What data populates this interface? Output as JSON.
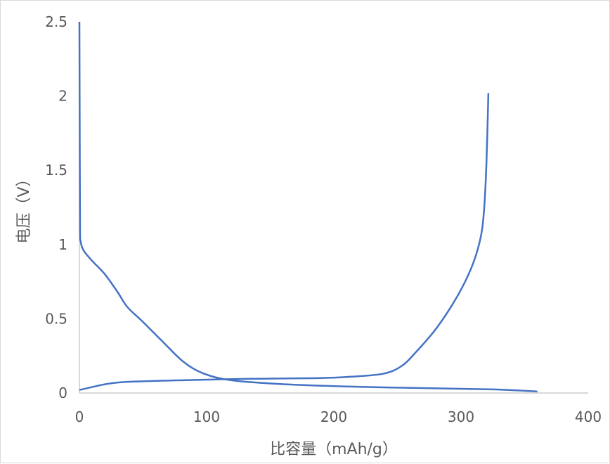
{
  "chart_data": {
    "type": "line",
    "title": "",
    "xlabel": "比容量（mAh/g）",
    "ylabel": "电压（V）",
    "xlim": [
      0,
      400
    ],
    "ylim": [
      0,
      2.5
    ],
    "xticks": [
      "0",
      "100",
      "200",
      "300",
      "400"
    ],
    "yticks": [
      "0",
      "0.5",
      "1",
      "1.5",
      "2",
      "2.5"
    ],
    "grid": false,
    "legend": "none",
    "series_color": "#4472C4",
    "series": [
      {
        "x": [
          0,
          0.3,
          0.5,
          1,
          3.3,
          10,
          20,
          30,
          37.6,
          48.6,
          65,
          81.8,
          98,
          120,
          159,
          214,
          270,
          325,
          360
        ],
        "y": [
          2.5,
          1.6,
          1.1,
          1.02,
          0.96,
          0.89,
          0.8,
          0.68,
          0.58,
          0.49,
          0.35,
          0.21,
          0.13,
          0.085,
          0.06,
          0.043,
          0.033,
          0.024,
          0.01
        ]
      },
      {
        "x": [
          0,
          10,
          21,
          37.6,
          76,
          131,
          187,
          214,
          239,
          253,
          264,
          281,
          297,
          308,
          315,
          318,
          320,
          321.5
        ],
        "y": [
          0.02,
          0.04,
          0.06,
          0.075,
          0.085,
          0.095,
          0.1,
          0.11,
          0.13,
          0.18,
          0.27,
          0.44,
          0.65,
          0.84,
          1.03,
          1.22,
          1.55,
          2.02
        ]
      }
    ]
  }
}
